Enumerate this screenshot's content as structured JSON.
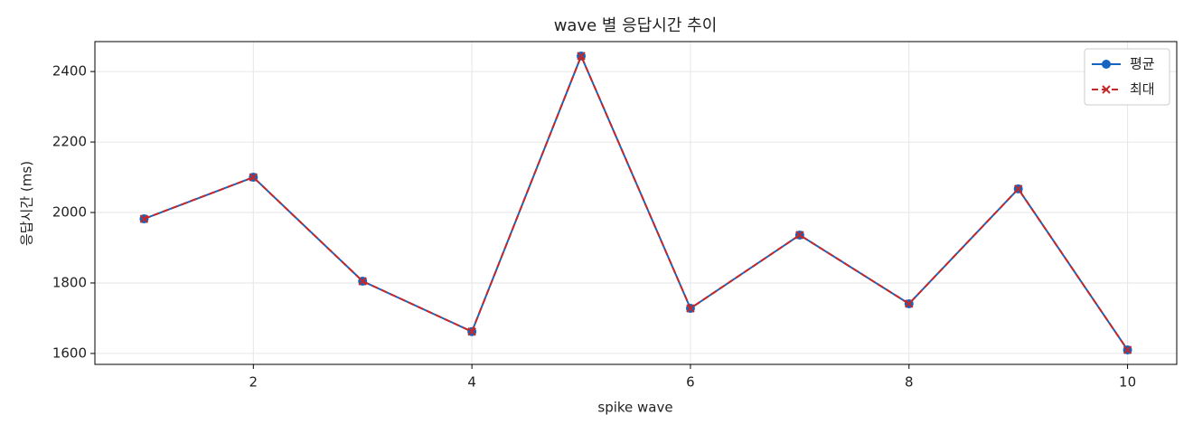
{
  "chart_data": {
    "type": "line",
    "title": "wave 별 응답시간 추이",
    "xlabel": "spike wave",
    "ylabel": "응답시간 (ms)",
    "x": [
      1,
      2,
      3,
      4,
      5,
      6,
      7,
      8,
      9,
      10
    ],
    "series": [
      {
        "name": "평균",
        "color": "#1565c0",
        "linestyle": "solid",
        "marker": "circle",
        "values": [
          1982,
          2100,
          1805,
          1662,
          2444,
          1728,
          1936,
          1741,
          2067,
          1610
        ]
      },
      {
        "name": "최대",
        "color": "#c62828",
        "linestyle": "dashed",
        "marker": "x",
        "values": [
          1982,
          2100,
          1805,
          1662,
          2444,
          1728,
          1936,
          1741,
          2067,
          1610
        ]
      }
    ],
    "xlim": [
      0.55,
      10.45
    ],
    "xticks": [
      2,
      4,
      6,
      8,
      10
    ],
    "ylim": [
      1569,
      2485
    ],
    "yticks": [
      1600,
      1800,
      2000,
      2200,
      2400
    ],
    "grid": true,
    "legend": "upper right"
  }
}
